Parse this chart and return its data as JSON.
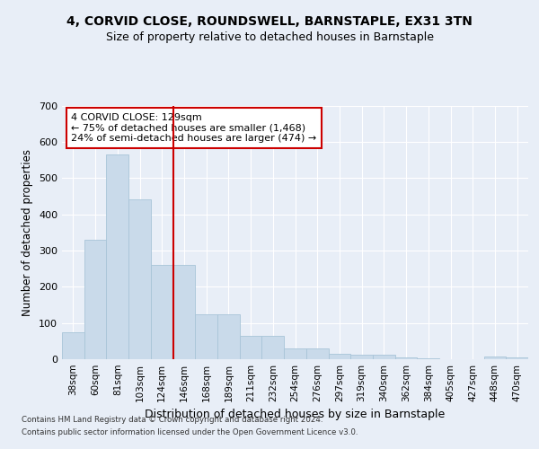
{
  "title_line1": "4, CORVID CLOSE, ROUNDSWELL, BARNSTAPLE, EX31 3TN",
  "subtitle": "Size of property relative to detached houses in Barnstaple",
  "xlabel": "Distribution of detached houses by size in Barnstaple",
  "ylabel": "Number of detached properties",
  "categories": [
    "38sqm",
    "60sqm",
    "81sqm",
    "103sqm",
    "124sqm",
    "146sqm",
    "168sqm",
    "189sqm",
    "211sqm",
    "232sqm",
    "254sqm",
    "276sqm",
    "297sqm",
    "319sqm",
    "340sqm",
    "362sqm",
    "384sqm",
    "405sqm",
    "427sqm",
    "448sqm",
    "470sqm"
  ],
  "values": [
    75,
    330,
    565,
    440,
    260,
    260,
    125,
    125,
    65,
    65,
    30,
    30,
    15,
    12,
    12,
    5,
    2,
    1,
    1,
    8,
    5
  ],
  "bar_color": "#c9daea",
  "bar_edgecolor": "#a8c4d8",
  "vline_color": "#cc0000",
  "vline_index": 4.5,
  "annotation_text": "4 CORVID CLOSE: 129sqm\n← 75% of detached houses are smaller (1,468)\n24% of semi-detached houses are larger (474) →",
  "annotation_box_facecolor": "#ffffff",
  "annotation_box_edgecolor": "#cc0000",
  "ylim": [
    0,
    700
  ],
  "yticks": [
    0,
    100,
    200,
    300,
    400,
    500,
    600,
    700
  ],
  "bg_color": "#e8eef7",
  "footer_line1": "Contains HM Land Registry data © Crown copyright and database right 2024.",
  "footer_line2": "Contains public sector information licensed under the Open Government Licence v3.0."
}
